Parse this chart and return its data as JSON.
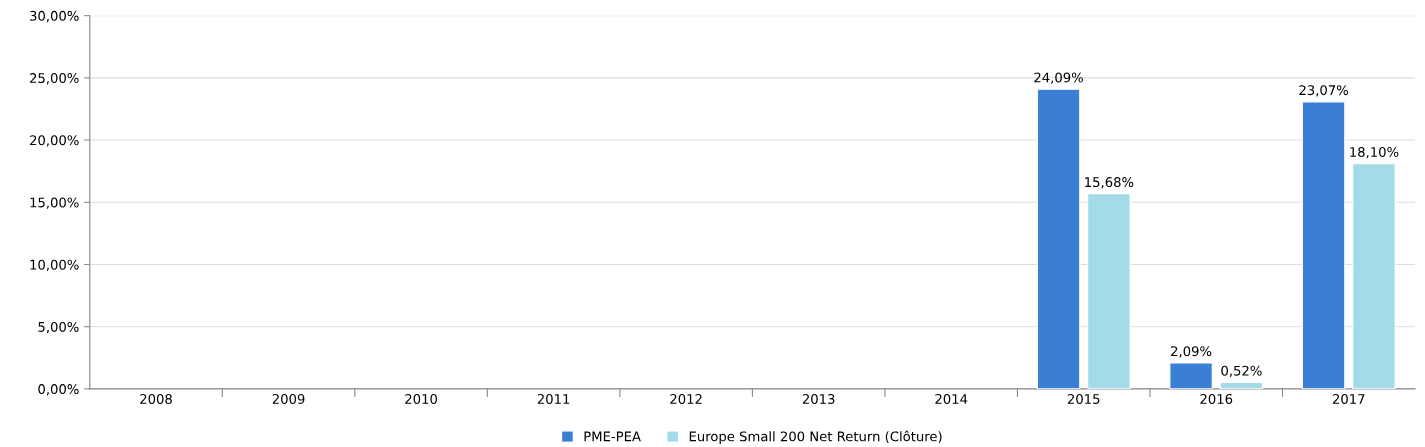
{
  "chart_data": {
    "type": "bar",
    "categories": [
      "2008",
      "2009",
      "2010",
      "2011",
      "2012",
      "2013",
      "2014",
      "2015",
      "2016",
      "2017"
    ],
    "series": [
      {
        "name": "PME-PEA",
        "color": "#3b7fd4",
        "values": [
          null,
          null,
          null,
          null,
          null,
          null,
          null,
          24.09,
          2.09,
          23.07
        ],
        "value_labels": [
          null,
          null,
          null,
          null,
          null,
          null,
          null,
          "24,09%",
          "2,09%",
          "23,07%"
        ]
      },
      {
        "name": "Europe Small 200 Net Return (Clôture)",
        "color": "#a3dbe8",
        "values": [
          null,
          null,
          null,
          null,
          null,
          null,
          null,
          15.68,
          0.52,
          18.1
        ],
        "value_labels": [
          null,
          null,
          null,
          null,
          null,
          null,
          null,
          "15,68%",
          "0,52%",
          "18,10%"
        ]
      }
    ],
    "ylim": [
      0,
      30
    ],
    "yticks": [
      {
        "value": 0,
        "label": "0,00%"
      },
      {
        "value": 5,
        "label": "5,00%"
      },
      {
        "value": 10,
        "label": "10,00%"
      },
      {
        "value": 15,
        "label": "15,00%"
      },
      {
        "value": 20,
        "label": "20,00%"
      },
      {
        "value": 25,
        "label": "25,00%"
      },
      {
        "value": 30,
        "label": "30,00%"
      }
    ],
    "grid": "y",
    "legend": "bottom"
  }
}
